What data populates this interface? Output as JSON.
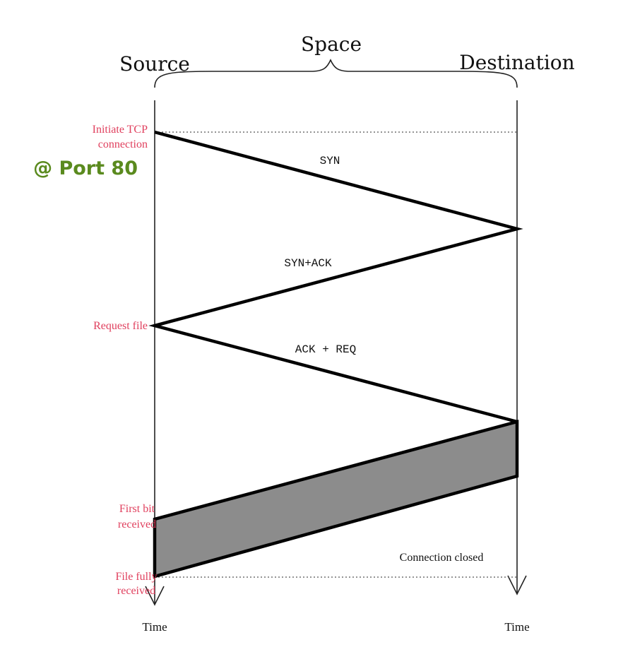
{
  "header": {
    "space_label": "Space",
    "source_label": "Source",
    "destination_label": "Destination"
  },
  "messages": {
    "syn": "SYN",
    "syn_ack": "SYN+ACK",
    "ack_req": "ACK + REQ"
  },
  "source_events": {
    "initiate_line1": "Initiate TCP",
    "initiate_line2": "connection",
    "request_file": "Request file",
    "first_bit_line1": "First bit",
    "first_bit_line2": "received",
    "fully_line1": "File fully",
    "fully_line2": "received"
  },
  "port_annotation": "@ Port 80",
  "connection_closed": "Connection closed",
  "axes": {
    "source_time": "Time",
    "destination_time": "Time"
  },
  "colors": {
    "event_label": "#e0405e",
    "port_annotation": "#5a8a1e",
    "transfer_fill": "#8c8c8c",
    "line": "#000000"
  }
}
